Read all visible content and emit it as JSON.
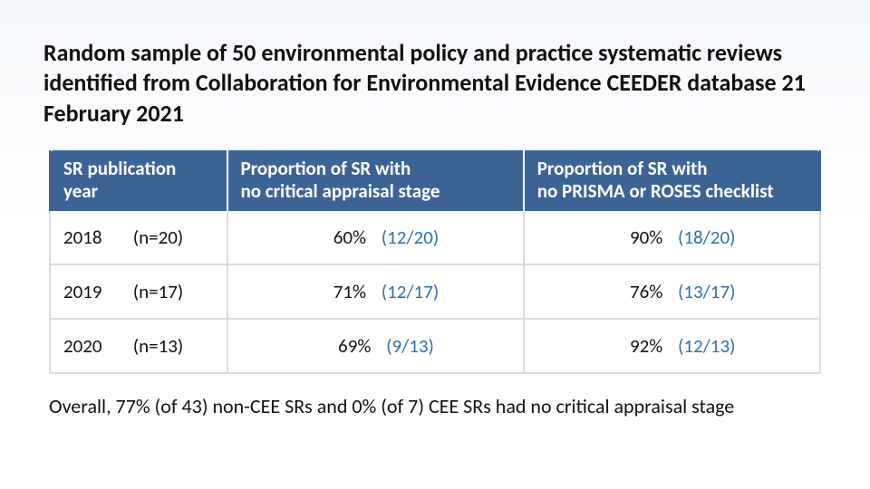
{
  "title": "Random sample of 50 environmental policy and practice systematic reviews identified from Collaboration for Environmental Evidence CEEDER database 21 February 2021",
  "table": {
    "type": "table",
    "header_bg": "#3b6495",
    "header_text_color": "#ffffff",
    "border_color": "#d6dde5",
    "frac_color": "#2f6fad",
    "columns": [
      {
        "line1": "SR publication",
        "line2": "year",
        "width_pct": 23,
        "align": "left"
      },
      {
        "line1": "Proportion of SR with",
        "line2": "no critical appraisal stage",
        "width_pct": 38.5,
        "align": "center"
      },
      {
        "line1": "Proportion of SR with",
        "line2": "no PRISMA or ROSES checklist",
        "width_pct": 38.5,
        "align": "center"
      }
    ],
    "rows": [
      {
        "year": "2018",
        "n": "(n=20)",
        "c1_pct": "60%",
        "c1_frac": "(12/20)",
        "c2_pct": "90%",
        "c2_frac": "(18/20)"
      },
      {
        "year": "2019",
        "n": "(n=17)",
        "c1_pct": "71%",
        "c1_frac": "(12/17)",
        "c2_pct": "76%",
        "c2_frac": "(13/17)"
      },
      {
        "year": "2020",
        "n": "(n=13)",
        "c1_pct": "69%",
        "c1_frac": "(9/13)",
        "c2_pct": "92%",
        "c2_frac": "(12/13)"
      }
    ]
  },
  "footer": "Overall, 77% (of 43) non-CEE SRs and 0% (of 7) CEE SRs had no critical appraisal stage",
  "fonts": {
    "title_pt": 26,
    "table_pt": 21,
    "footer_pt": 22
  },
  "background_gradient": {
    "top": "#f4f7fb",
    "bottom": "#ffffff"
  }
}
